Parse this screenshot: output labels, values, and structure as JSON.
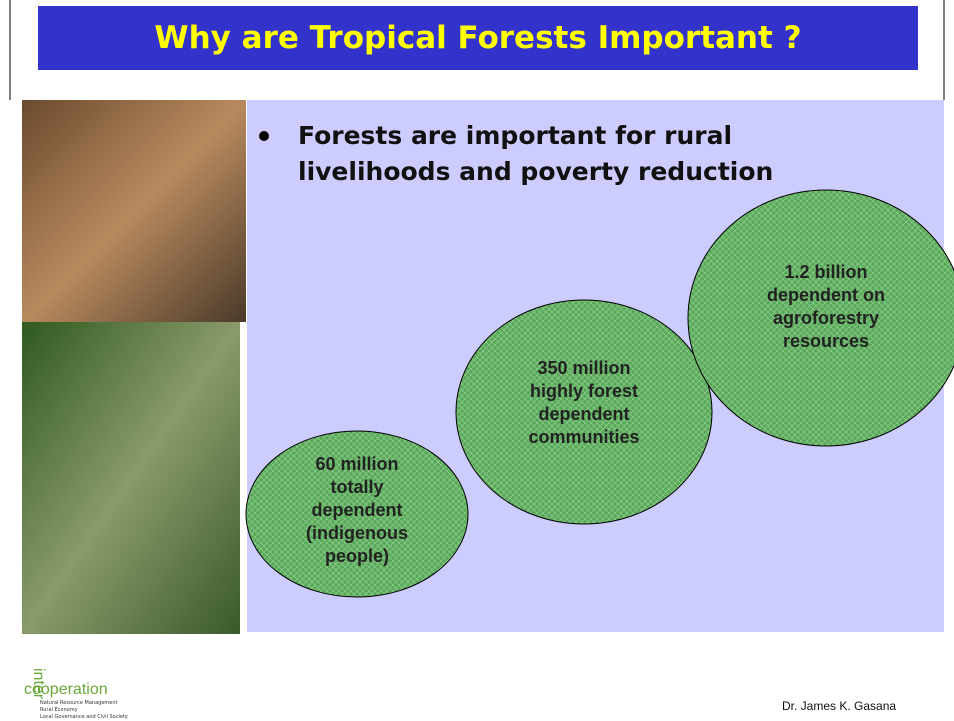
{
  "header": {
    "title": "Why are Tropical Forests Important ?"
  },
  "bullet": {
    "lines": [
      "Forests are important for rural",
      "livelihoods and poverty reduction"
    ]
  },
  "circles": [
    {
      "lines": [
        "60 million",
        "totally",
        "dependent",
        "(indigenous",
        "people)"
      ]
    },
    {
      "lines": [
        "350 million",
        "highly forest",
        "dependent",
        "communities"
      ]
    },
    {
      "lines": [
        "1.2 billion",
        "dependent on",
        "agroforestry",
        "resources"
      ]
    }
  ],
  "logo": {
    "top": "inter",
    "name": "cooperation",
    "lines": [
      "Natural Resource Management",
      "Rural Economy",
      "Local Governance and Civil Society"
    ]
  },
  "footer": {
    "author": "Dr. James K. Gasana"
  }
}
